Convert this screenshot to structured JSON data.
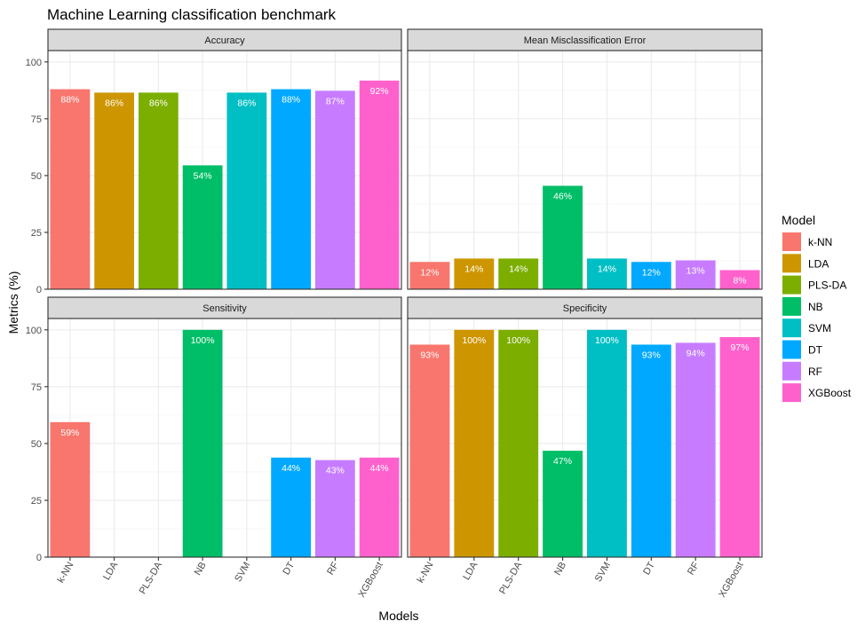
{
  "chart_data": {
    "type": "bar",
    "title": "Machine Learning classification benchmark",
    "xlabel": "Models",
    "ylabel": "Metrics (%)",
    "categories": [
      "k-NN",
      "LDA",
      "PLS-DA",
      "NB",
      "SVM",
      "DT",
      "RF",
      "XGBoost"
    ],
    "ylim": [
      0,
      105
    ],
    "yticks": [
      0,
      25,
      50,
      75,
      100
    ],
    "grid": true,
    "legend": {
      "title": "Model",
      "position": "right",
      "entries": [
        "k-NN",
        "LDA",
        "PLS-DA",
        "NB",
        "SVM",
        "DT",
        "RF",
        "XGBoost"
      ]
    },
    "colors": {
      "k-NN": "#F8766D",
      "LDA": "#CD9600",
      "PLS-DA": "#7CAE00",
      "NB": "#00BE67",
      "SVM": "#00BFC4",
      "DT": "#00A9FF",
      "RF": "#C77CFF",
      "XGBoost": "#FF61CC"
    },
    "panels": [
      {
        "name": "Accuracy",
        "values": [
          88,
          86.5,
          86.5,
          54.5,
          86.5,
          88,
          87.3,
          91.8
        ],
        "labels": [
          "88%",
          "86%",
          "86%",
          "54%",
          "86%",
          "88%",
          "87%",
          "92%"
        ]
      },
      {
        "name": "Mean Misclassification Error",
        "values": [
          12,
          13.5,
          13.5,
          45.5,
          13.5,
          12,
          12.7,
          8.4
        ],
        "labels": [
          "12%",
          "14%",
          "14%",
          "46%",
          "14%",
          "12%",
          "13%",
          "8%"
        ]
      },
      {
        "name": "Sensitivity",
        "values": [
          59.4,
          0,
          0,
          100,
          0,
          43.8,
          42.7,
          43.8
        ],
        "labels": [
          "59%",
          "",
          "",
          "100%",
          "",
          "44%",
          "43%",
          "44%"
        ]
      },
      {
        "name": "Specificity",
        "values": [
          93.5,
          100,
          100,
          46.8,
          100,
          93.5,
          94.3,
          96.8
        ],
        "labels": [
          "93%",
          "100%",
          "100%",
          "47%",
          "100%",
          "93%",
          "94%",
          "97%"
        ]
      }
    ]
  }
}
